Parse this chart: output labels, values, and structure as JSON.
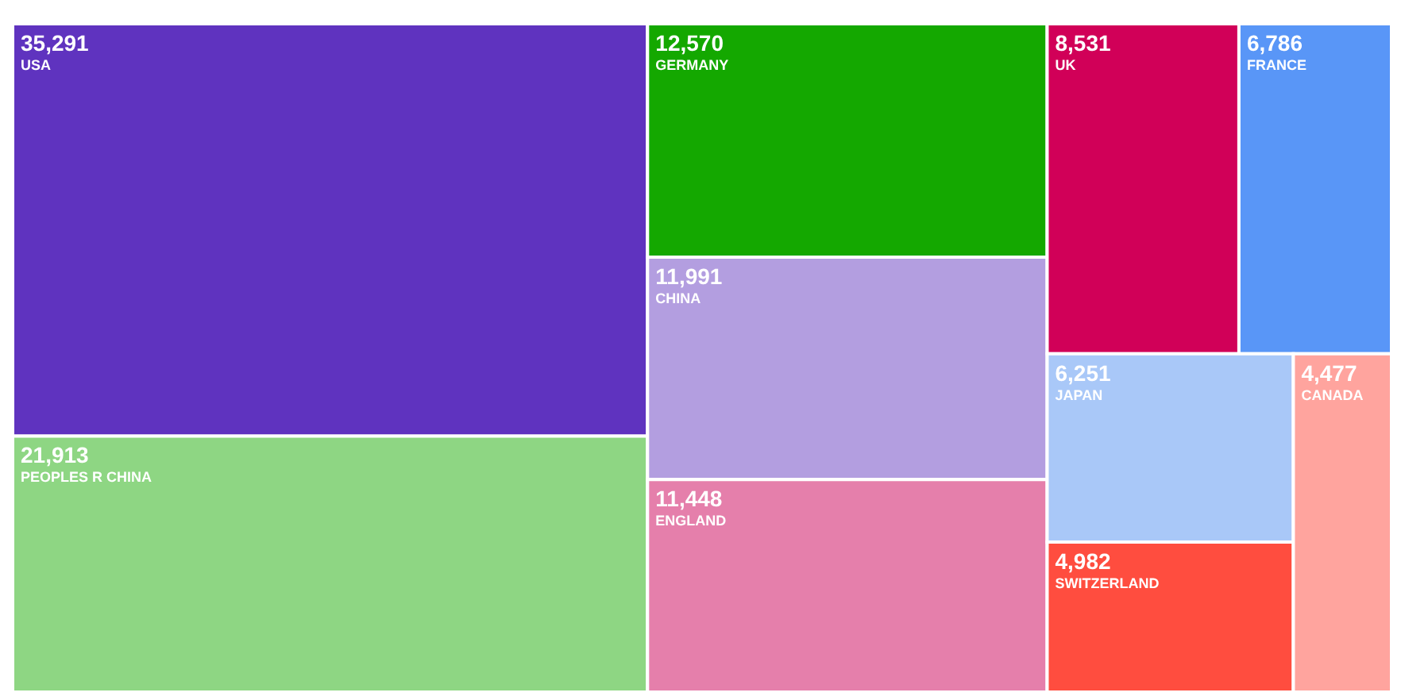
{
  "chart_data": {
    "type": "other",
    "categories": [
      "USA",
      "PEOPLES R CHINA",
      "GERMANY",
      "CHINA",
      "ENGLAND",
      "UK",
      "FRANCE",
      "JAPAN",
      "SWITZERLAND",
      "CANADA"
    ],
    "values": [
      35291,
      21913,
      12570,
      11991,
      11448,
      8531,
      6786,
      6251,
      4982,
      4477
    ],
    "colors": [
      "#5f33bf",
      "#8ed683",
      "#14a800",
      "#b39ee0",
      "#e57fab",
      "#d10058",
      "#5996f7",
      "#a9c8f8",
      "#ff4d3f",
      "#ffa49e"
    ],
    "value_labels": [
      "35,291",
      "21,913",
      "12,570",
      "11,991",
      "11,448",
      "8,531",
      "6,786",
      "6,251",
      "4,982",
      "4,477"
    ]
  }
}
